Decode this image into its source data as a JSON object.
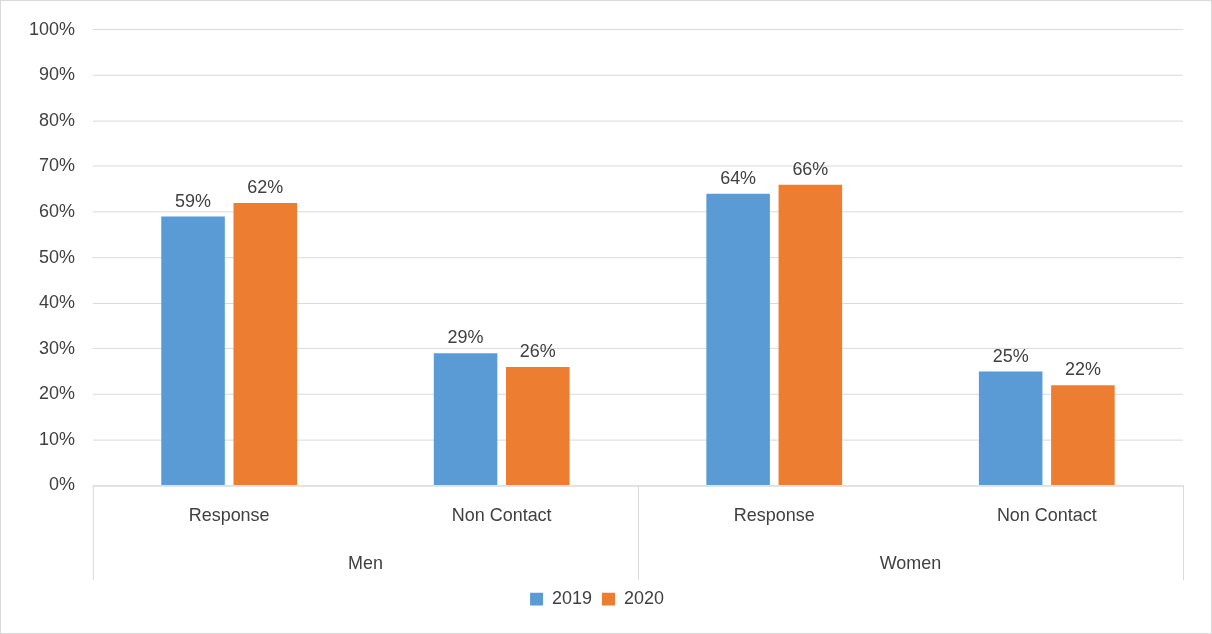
{
  "chart_data": {
    "type": "bar",
    "categories": [
      "Response",
      "Non Contact",
      "Response",
      "Non Contact"
    ],
    "series": [
      {
        "name": "2019",
        "color": "#5b9bd5",
        "values": [
          59,
          29,
          64,
          25
        ],
        "value_labels": [
          "59%",
          "29%",
          "64%",
          "25%"
        ]
      },
      {
        "name": "2020",
        "color": "#ed7d31",
        "values": [
          62,
          26,
          66,
          22
        ],
        "value_labels": [
          "62%",
          "26%",
          "66%",
          "22%"
        ]
      }
    ],
    "annotations": [
      "Men",
      "Women"
    ],
    "ylim": [
      0,
      100
    ],
    "yticks": [
      {
        "value": 0,
        "label": "0%"
      },
      {
        "value": 10,
        "label": "10%"
      },
      {
        "value": 20,
        "label": "20%"
      },
      {
        "value": 30,
        "label": "30%"
      },
      {
        "value": 40,
        "label": "40%"
      },
      {
        "value": 50,
        "label": "50%"
      },
      {
        "value": 60,
        "label": "60%"
      },
      {
        "value": 70,
        "label": "70%"
      },
      {
        "value": 80,
        "label": "80%"
      },
      {
        "value": 90,
        "label": "90%"
      },
      {
        "value": 100,
        "label": "100%"
      }
    ],
    "grid": "y",
    "legend": "bottom"
  }
}
